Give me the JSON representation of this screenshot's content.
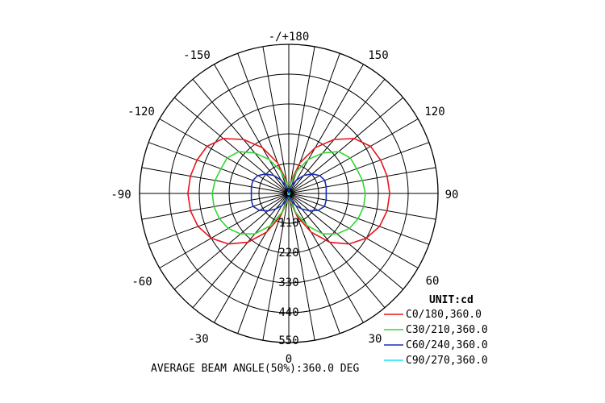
{
  "chart_data": {
    "type": "polar",
    "angle_labels": [
      "-/+180",
      "150",
      "120",
      "90",
      "60",
      "30",
      "0",
      "-30",
      "-60",
      "-90",
      "-120",
      "-150"
    ],
    "ring_labels": [
      "0",
      "110",
      "220",
      "330",
      "440",
      "550"
    ],
    "unit_label": "UNIT:cd",
    "footer": "AVERAGE BEAM ANGLE(50%):360.0 DEG",
    "series": [
      {
        "name": "C0/180,360.0",
        "color": "#e8141c",
        "points": [
          [
            0,
            0
          ],
          [
            10,
            28
          ],
          [
            20,
            90
          ],
          [
            30,
            165
          ],
          [
            40,
            235
          ],
          [
            50,
            290
          ],
          [
            60,
            330
          ],
          [
            70,
            356
          ],
          [
            80,
            368
          ],
          [
            90,
            372
          ],
          [
            100,
            368
          ],
          [
            110,
            360
          ],
          [
            120,
            348
          ],
          [
            130,
            315
          ],
          [
            140,
            260
          ],
          [
            150,
            195
          ],
          [
            160,
            120
          ],
          [
            170,
            45
          ],
          [
            180,
            0
          ]
        ]
      },
      {
        "name": "C30/210,360.0",
        "color": "#33d633",
        "points": [
          [
            0,
            0
          ],
          [
            10,
            22
          ],
          [
            20,
            75
          ],
          [
            30,
            138
          ],
          [
            40,
            195
          ],
          [
            50,
            232
          ],
          [
            60,
            258
          ],
          [
            70,
            272
          ],
          [
            80,
            280
          ],
          [
            90,
            282
          ],
          [
            100,
            276
          ],
          [
            110,
            266
          ],
          [
            120,
            262
          ],
          [
            130,
            240
          ],
          [
            140,
            195
          ],
          [
            150,
            145
          ],
          [
            160,
            90
          ],
          [
            170,
            35
          ],
          [
            180,
            0
          ]
        ]
      },
      {
        "name": "C60/240,360.0",
        "color": "#1a2db8",
        "points": [
          [
            0,
            0
          ],
          [
            10,
            12
          ],
          [
            20,
            30
          ],
          [
            30,
            52
          ],
          [
            40,
            75
          ],
          [
            50,
            100
          ],
          [
            60,
            125
          ],
          [
            70,
            140
          ],
          [
            80,
            140
          ],
          [
            90,
            138
          ],
          [
            100,
            140
          ],
          [
            110,
            141
          ],
          [
            120,
            132
          ],
          [
            130,
            112
          ],
          [
            140,
            87
          ],
          [
            150,
            57
          ],
          [
            160,
            32
          ],
          [
            170,
            12
          ],
          [
            180,
            0
          ]
        ]
      },
      {
        "name": "C90/270,360.0",
        "color": "#16e4ee",
        "points": [
          [
            0,
            0
          ],
          [
            30,
            4
          ],
          [
            60,
            6
          ],
          [
            90,
            7
          ],
          [
            120,
            6
          ],
          [
            150,
            4
          ],
          [
            180,
            0
          ]
        ]
      }
    ]
  }
}
